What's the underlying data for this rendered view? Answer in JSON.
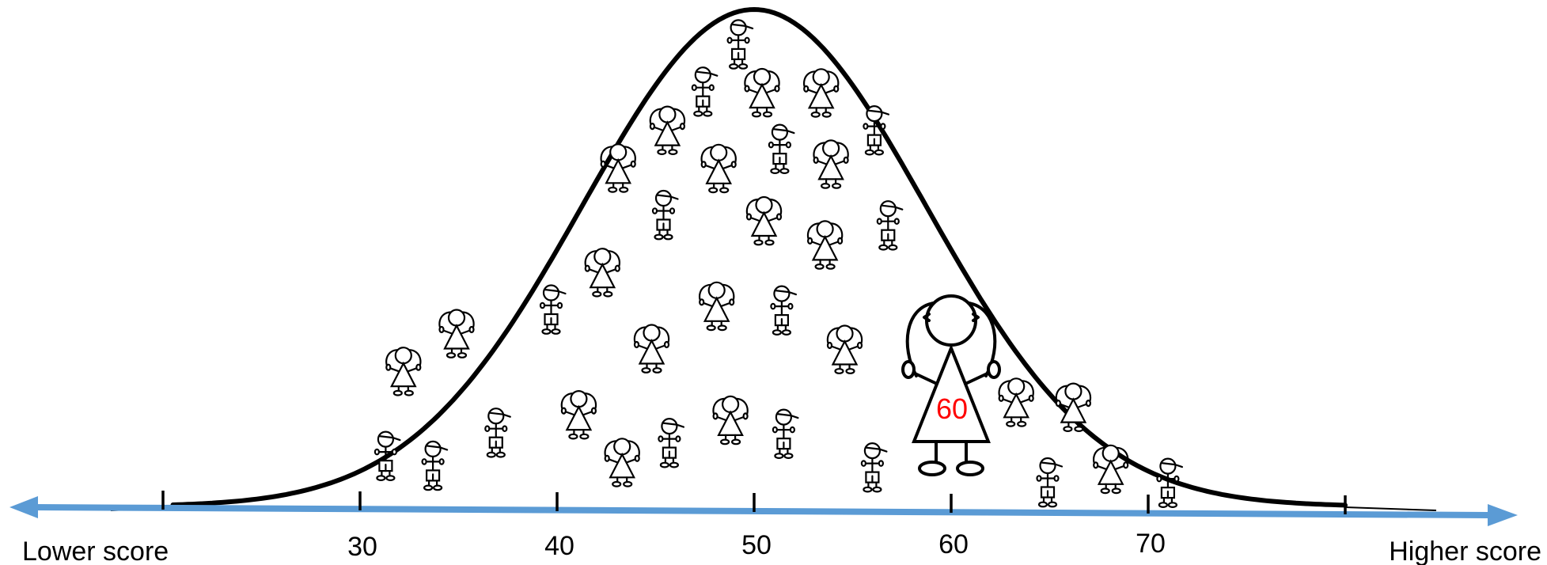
{
  "axis": {
    "left_label": "Lower score",
    "right_label": "Higher score",
    "ticks": [
      {
        "value": 20,
        "label": ""
      },
      {
        "value": 30,
        "label": "30"
      },
      {
        "value": 40,
        "label": "40"
      },
      {
        "value": 50,
        "label": "50"
      },
      {
        "value": 60,
        "label": "60"
      },
      {
        "value": 70,
        "label": "70"
      },
      {
        "value": 80,
        "label": ""
      }
    ],
    "arrow_color": "#5b9bd5",
    "curve_color": "#000000"
  },
  "distribution": {
    "mean": 50,
    "sd": 8.7
  },
  "highlight": {
    "score": 60,
    "text": "60",
    "text_color": "#ff0000"
  },
  "figures": [
    {
      "type": "boy",
      "score": 49.2,
      "height": 0.92
    },
    {
      "type": "boy",
      "score": 47.4,
      "height": 0.82
    },
    {
      "type": "girl",
      "score": 50.4,
      "height": 0.82
    },
    {
      "type": "girl",
      "score": 53.4,
      "height": 0.82
    },
    {
      "type": "girl",
      "score": 45.6,
      "height": 0.74
    },
    {
      "type": "boy",
      "score": 51.3,
      "height": 0.7
    },
    {
      "type": "girl",
      "score": 53.9,
      "height": 0.67
    },
    {
      "type": "boy",
      "score": 56.1,
      "height": 0.74
    },
    {
      "type": "girl",
      "score": 43.1,
      "height": 0.66
    },
    {
      "type": "girl",
      "score": 48.2,
      "height": 0.66
    },
    {
      "type": "boy",
      "score": 45.4,
      "height": 0.56
    },
    {
      "type": "girl",
      "score": 50.5,
      "height": 0.55
    },
    {
      "type": "girl",
      "score": 53.6,
      "height": 0.5
    },
    {
      "type": "boy",
      "score": 56.8,
      "height": 0.54
    },
    {
      "type": "girl",
      "score": 42.3,
      "height": 0.44
    },
    {
      "type": "boy",
      "score": 39.7,
      "height": 0.36
    },
    {
      "type": "girl",
      "score": 48.1,
      "height": 0.37
    },
    {
      "type": "boy",
      "score": 51.4,
      "height": 0.36
    },
    {
      "type": "girl",
      "score": 54.6,
      "height": 0.28
    },
    {
      "type": "girl",
      "score": 34.9,
      "height": 0.31
    },
    {
      "type": "girl",
      "score": 44.8,
      "height": 0.28
    },
    {
      "type": "girl",
      "score": 32.2,
      "height": 0.23
    },
    {
      "type": "girl",
      "score": 41.1,
      "height": 0.14
    },
    {
      "type": "girl",
      "score": 48.8,
      "height": 0.13
    },
    {
      "type": "boy",
      "score": 36.9,
      "height": 0.1
    },
    {
      "type": "boy",
      "score": 45.7,
      "height": 0.08
    },
    {
      "type": "boy",
      "score": 51.5,
      "height": 0.1
    },
    {
      "type": "girl",
      "score": 43.3,
      "height": 0.04
    },
    {
      "type": "boy",
      "score": 31.3,
      "height": 0.05
    },
    {
      "type": "boy",
      "score": 33.7,
      "height": 0.03
    },
    {
      "type": "boy",
      "score": 56.0,
      "height": 0.03
    },
    {
      "type": "girl",
      "score": 63.3,
      "height": 0.17
    },
    {
      "type": "girl",
      "score": 66.2,
      "height": 0.16
    },
    {
      "type": "boy",
      "score": 64.9,
      "height": 0.0
    },
    {
      "type": "girl",
      "score": 68.1,
      "height": 0.03
    },
    {
      "type": "boy",
      "score": 71.0,
      "height": 0.0
    }
  ]
}
